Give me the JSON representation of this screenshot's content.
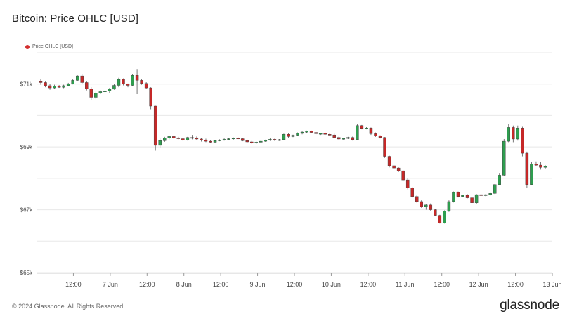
{
  "header": {
    "title": "Bitcoin: Price OHLC [USD]"
  },
  "footer": {
    "copyright": "© 2024 Glassnode. All Rights Reserved.",
    "brand": "glassnode"
  },
  "colors": {
    "up": "#2e9e4f",
    "down": "#c62828",
    "legend_marker": "#d32f2f",
    "grid": "#e8e8e8",
    "axis_text": "#444"
  },
  "chart_data": {
    "type": "candlestick",
    "title": "Bitcoin: Price OHLC [USD]",
    "legend": [
      "Price OHLC [USD]"
    ],
    "legend_position": "top-left",
    "grid": "horizontal",
    "ylim": [
      65000,
      72000
    ],
    "y_ticks": [
      65000,
      67000,
      69000,
      71000
    ],
    "y_tick_labels": [
      "$65k",
      "$67k",
      "$69k",
      "$71k"
    ],
    "xlim": [
      0,
      168
    ],
    "x_ticks": [
      12,
      24,
      36,
      48,
      60,
      72,
      84,
      96,
      108,
      120,
      132,
      144,
      156,
      168
    ],
    "x_tick_labels": [
      "12:00",
      "7 Jun",
      "12:00",
      "8 Jun",
      "12:00",
      "9 Jun",
      "12:00",
      "10 Jun",
      "12:00",
      "11 Jun",
      "12:00",
      "12 Jun",
      "12:00",
      "13 Jun"
    ],
    "candles": [
      [
        71080,
        71160,
        70980,
        71050
      ],
      [
        71050,
        71080,
        70900,
        70950
      ],
      [
        70950,
        71000,
        70820,
        70880
      ],
      [
        70880,
        70980,
        70850,
        70940
      ],
      [
        70940,
        70970,
        70880,
        70900
      ],
      [
        70900,
        70980,
        70870,
        70950
      ],
      [
        70950,
        71040,
        70930,
        71010
      ],
      [
        71010,
        71150,
        70990,
        71120
      ],
      [
        71120,
        71280,
        71090,
        71260
      ],
      [
        71260,
        71320,
        71000,
        71050
      ],
      [
        71050,
        71100,
        70800,
        70850
      ],
      [
        70850,
        70900,
        70500,
        70580
      ],
      [
        70580,
        70760,
        70520,
        70720
      ],
      [
        70720,
        70800,
        70680,
        70760
      ],
      [
        70760,
        70820,
        70700,
        70780
      ],
      [
        70780,
        70880,
        70720,
        70840
      ],
      [
        70840,
        71000,
        70820,
        70960
      ],
      [
        70960,
        71200,
        70900,
        71150
      ],
      [
        71150,
        71180,
        70960,
        71000
      ],
      [
        71000,
        71020,
        70900,
        70960
      ],
      [
        70960,
        71320,
        70940,
        71280
      ],
      [
        71280,
        71480,
        70680,
        71120
      ],
      [
        71120,
        71160,
        70980,
        71020
      ],
      [
        71020,
        71060,
        70840,
        70880
      ],
      [
        70880,
        70900,
        70200,
        70300
      ],
      [
        70300,
        70310,
        68880,
        69050
      ],
      [
        69050,
        69280,
        68970,
        69200
      ],
      [
        69200,
        69320,
        69160,
        69280
      ],
      [
        69280,
        69360,
        69240,
        69330
      ],
      [
        69330,
        69360,
        69260,
        69290
      ],
      [
        69290,
        69320,
        69240,
        69260
      ],
      [
        69260,
        69290,
        69180,
        69220
      ],
      [
        69220,
        69320,
        69200,
        69300
      ],
      [
        69300,
        69380,
        69240,
        69290
      ],
      [
        69290,
        69330,
        69220,
        69250
      ],
      [
        69250,
        69290,
        69170,
        69220
      ],
      [
        69220,
        69260,
        69150,
        69180
      ],
      [
        69180,
        69220,
        69120,
        69150
      ],
      [
        69150,
        69220,
        69120,
        69200
      ],
      [
        69200,
        69240,
        69180,
        69220
      ],
      [
        69220,
        69270,
        69200,
        69240
      ],
      [
        69240,
        69280,
        69220,
        69260
      ],
      [
        69260,
        69300,
        69230,
        69280
      ],
      [
        69280,
        69310,
        69240,
        69260
      ],
      [
        69260,
        69280,
        69180,
        69200
      ],
      [
        69200,
        69230,
        69130,
        69160
      ],
      [
        69160,
        69190,
        69100,
        69120
      ],
      [
        69120,
        69170,
        69100,
        69150
      ],
      [
        69150,
        69200,
        69130,
        69180
      ],
      [
        69180,
        69230,
        69160,
        69210
      ],
      [
        69210,
        69270,
        69190,
        69240
      ],
      [
        69240,
        69260,
        69190,
        69210
      ],
      [
        69210,
        69250,
        69190,
        69230
      ],
      [
        69230,
        69420,
        69210,
        69400
      ],
      [
        69400,
        69440,
        69290,
        69330
      ],
      [
        69330,
        69390,
        69310,
        69370
      ],
      [
        69370,
        69460,
        69350,
        69430
      ],
      [
        69430,
        69500,
        69400,
        69470
      ],
      [
        69470,
        69520,
        69430,
        69500
      ],
      [
        69500,
        69520,
        69440,
        69460
      ],
      [
        69460,
        69480,
        69380,
        69420
      ],
      [
        69420,
        69450,
        69380,
        69430
      ],
      [
        69430,
        69460,
        69380,
        69400
      ],
      [
        69400,
        69440,
        69340,
        69380
      ],
      [
        69380,
        69420,
        69280,
        69300
      ],
      [
        69300,
        69330,
        69220,
        69250
      ],
      [
        69250,
        69290,
        69230,
        69270
      ],
      [
        69270,
        69320,
        69250,
        69300
      ],
      [
        69300,
        69330,
        69200,
        69230
      ],
      [
        69230,
        69720,
        69210,
        69680
      ],
      [
        69680,
        69700,
        69560,
        69590
      ],
      [
        69590,
        69630,
        69560,
        69600
      ],
      [
        69600,
        69620,
        69380,
        69420
      ],
      [
        69420,
        69460,
        69320,
        69350
      ],
      [
        69350,
        69370,
        69270,
        69300
      ],
      [
        69300,
        69310,
        68650,
        68700
      ],
      [
        68700,
        68720,
        68350,
        68400
      ],
      [
        68400,
        68420,
        68300,
        68330
      ],
      [
        68330,
        68350,
        68200,
        68240
      ],
      [
        68240,
        68260,
        67900,
        67950
      ],
      [
        67950,
        68000,
        67650,
        67700
      ],
      [
        67700,
        67730,
        67380,
        67420
      ],
      [
        67420,
        67460,
        67220,
        67260
      ],
      [
        67260,
        67300,
        67060,
        67100
      ],
      [
        67100,
        67180,
        67000,
        67150
      ],
      [
        67150,
        67200,
        66960,
        67000
      ],
      [
        67000,
        67020,
        66800,
        66820
      ],
      [
        66820,
        66840,
        66560,
        66580
      ],
      [
        66580,
        66980,
        66560,
        66950
      ],
      [
        66950,
        67300,
        66930,
        67260
      ],
      [
        67260,
        67580,
        67230,
        67550
      ],
      [
        67550,
        67580,
        67390,
        67420
      ],
      [
        67420,
        67480,
        67400,
        67460
      ],
      [
        67460,
        67500,
        67360,
        67380
      ],
      [
        67380,
        67420,
        67200,
        67220
      ],
      [
        67220,
        67500,
        67190,
        67480
      ],
      [
        67480,
        67520,
        67430,
        67450
      ],
      [
        67450,
        67500,
        67430,
        67480
      ],
      [
        67480,
        67550,
        67440,
        67520
      ],
      [
        67520,
        67820,
        67500,
        67800
      ],
      [
        67800,
        68150,
        67780,
        68100
      ],
      [
        68100,
        69250,
        68080,
        69180
      ],
      [
        69180,
        69720,
        69150,
        69620
      ],
      [
        69620,
        69680,
        69150,
        69250
      ],
      [
        69250,
        69680,
        69200,
        69600
      ],
      [
        69600,
        69640,
        68700,
        68800
      ],
      [
        68800,
        68850,
        67700,
        67800
      ],
      [
        67800,
        68520,
        67780,
        68450
      ],
      [
        68450,
        68540,
        68380,
        68420
      ],
      [
        68420,
        68520,
        68280,
        68350
      ],
      [
        68350,
        68420,
        68300,
        68380
      ]
    ]
  }
}
